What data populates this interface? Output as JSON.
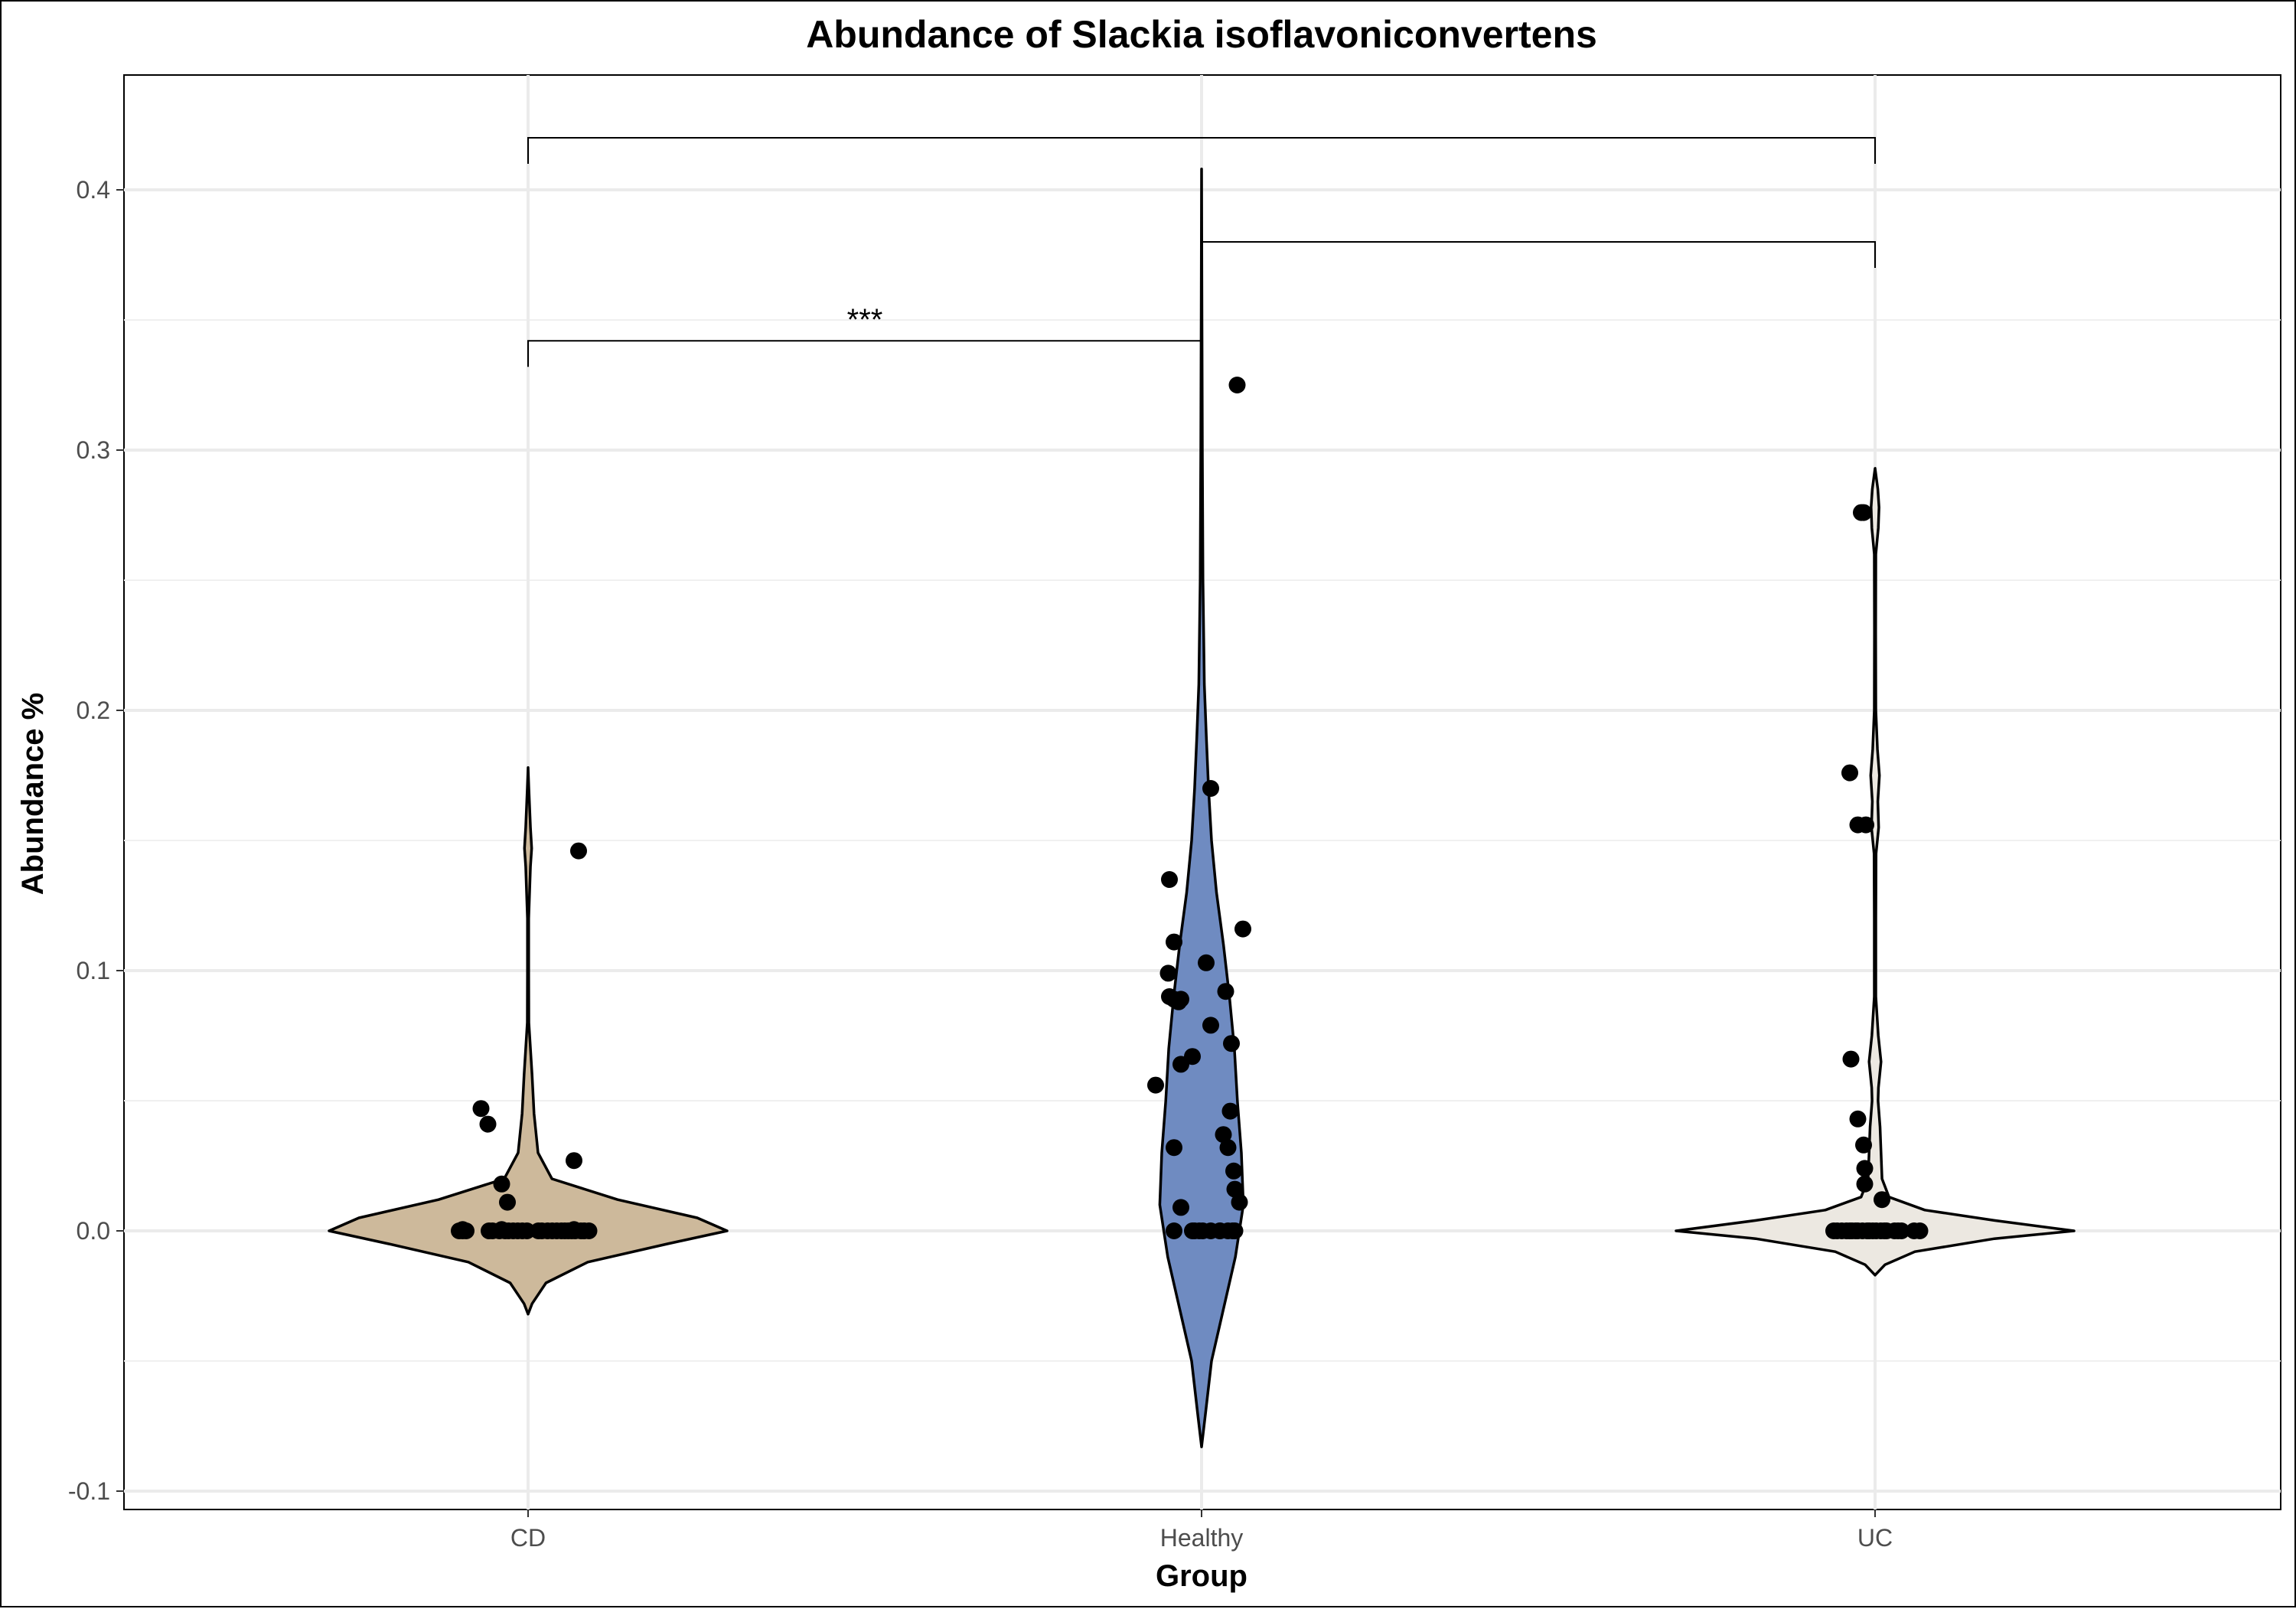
{
  "chart_data": {
    "type": "violin",
    "title": "Abundance of Slackia isoflavoniconvertens",
    "xlabel": "Group",
    "ylabel": "Abundance %",
    "ylim": [
      -0.113,
      0.443
    ],
    "yticks": [
      -0.1,
      0.0,
      0.1,
      0.2,
      0.3,
      0.4
    ],
    "ytick_labels": [
      "-0.1",
      "0.0",
      "0.1",
      "0.2",
      "0.3",
      "0.4"
    ],
    "categories": [
      "CD",
      "Healthy",
      "UC"
    ],
    "grid": true,
    "legend": "none",
    "colors": {
      "CD": "#cdb99b",
      "Healthy": "#6f8bc1",
      "UC": "#ece8e1",
      "outline": "#000000",
      "points": "#000000"
    },
    "violins": [
      {
        "group": "CD",
        "ymin": -0.032,
        "ymax": 0.178,
        "profile": [
          [
            -0.032,
            0.0
          ],
          [
            -0.028,
            0.02
          ],
          [
            -0.02,
            0.09
          ],
          [
            -0.012,
            0.3
          ],
          [
            -0.005,
            0.7
          ],
          [
            0.0,
            1.0
          ],
          [
            0.005,
            0.85
          ],
          [
            0.012,
            0.45
          ],
          [
            0.02,
            0.12
          ],
          [
            0.03,
            0.05
          ],
          [
            0.045,
            0.03
          ],
          [
            0.06,
            0.02
          ],
          [
            0.08,
            0.004
          ],
          [
            0.1,
            0.003
          ],
          [
            0.12,
            0.003
          ],
          [
            0.14,
            0.012
          ],
          [
            0.147,
            0.018
          ],
          [
            0.155,
            0.012
          ],
          [
            0.17,
            0.004
          ],
          [
            0.178,
            0.0
          ]
        ]
      },
      {
        "group": "Healthy",
        "ymin": -0.083,
        "ymax": 0.408,
        "profile": [
          [
            -0.083,
            0.0
          ],
          [
            -0.07,
            0.02
          ],
          [
            -0.05,
            0.05
          ],
          [
            -0.03,
            0.11
          ],
          [
            -0.01,
            0.17
          ],
          [
            0.01,
            0.21
          ],
          [
            0.03,
            0.2
          ],
          [
            0.05,
            0.18
          ],
          [
            0.07,
            0.165
          ],
          [
            0.09,
            0.14
          ],
          [
            0.11,
            0.11
          ],
          [
            0.13,
            0.075
          ],
          [
            0.15,
            0.05
          ],
          [
            0.17,
            0.035
          ],
          [
            0.19,
            0.024
          ],
          [
            0.21,
            0.014
          ],
          [
            0.25,
            0.007
          ],
          [
            0.3,
            0.004
          ],
          [
            0.35,
            0.002
          ],
          [
            0.408,
            0.0
          ]
        ]
      },
      {
        "group": "UC",
        "ymin": -0.017,
        "ymax": 0.293,
        "profile": [
          [
            -0.017,
            0.0
          ],
          [
            -0.013,
            0.05
          ],
          [
            -0.008,
            0.2
          ],
          [
            -0.003,
            0.6
          ],
          [
            0.0,
            1.0
          ],
          [
            0.004,
            0.6
          ],
          [
            0.008,
            0.25
          ],
          [
            0.013,
            0.07
          ],
          [
            0.02,
            0.035
          ],
          [
            0.03,
            0.03
          ],
          [
            0.04,
            0.025
          ],
          [
            0.05,
            0.015
          ],
          [
            0.055,
            0.017
          ],
          [
            0.065,
            0.03
          ],
          [
            0.075,
            0.016
          ],
          [
            0.09,
            0.004
          ],
          [
            0.12,
            0.004
          ],
          [
            0.145,
            0.005
          ],
          [
            0.155,
            0.018
          ],
          [
            0.165,
            0.014
          ],
          [
            0.175,
            0.022
          ],
          [
            0.185,
            0.012
          ],
          [
            0.2,
            0.004
          ],
          [
            0.23,
            0.003
          ],
          [
            0.26,
            0.004
          ],
          [
            0.27,
            0.016
          ],
          [
            0.278,
            0.02
          ],
          [
            0.285,
            0.014
          ],
          [
            0.293,
            0.0
          ]
        ]
      }
    ],
    "points": [
      {
        "group": "CD",
        "offsets": [
          -0.3,
          -0.285,
          -0.27,
          -0.285,
          -0.17,
          -0.155,
          -0.125,
          -0.1,
          -0.085,
          -0.065,
          -0.045,
          -0.025,
          -0.005,
          0.045,
          0.06,
          0.085,
          0.105,
          0.125,
          0.145,
          0.16,
          0.175,
          0.19,
          0.205,
          0.23,
          0.245,
          0.265,
          -0.205,
          -0.175,
          -0.115,
          -0.09,
          -0.115,
          0.2,
          0.2,
          0.22
        ],
        "y": [
          0.0,
          0.0,
          0.0,
          0.0005,
          0.0,
          0.0,
          0.0,
          0.0,
          0.0,
          0.0,
          0.0,
          0.0,
          0.0,
          0.0,
          0.0,
          0.0,
          0.0,
          0.0,
          0.0,
          0.0,
          0.0,
          0.0,
          0.0,
          0.0,
          0.0,
          0.0,
          0.047,
          0.041,
          0.018,
          0.011,
          0.0005,
          0.027,
          0.0005,
          0.146
        ]
      },
      {
        "group": "Healthy",
        "offsets": [
          -0.2,
          -0.14,
          -0.145,
          -0.12,
          -0.09,
          -0.12,
          -0.1,
          -0.14,
          -0.09,
          -0.04,
          -0.12,
          -0.09,
          -0.12,
          -0.04,
          -0.03,
          -0.01,
          0.005,
          0.04,
          0.08,
          0.04,
          0.02,
          0.04,
          0.105,
          0.13,
          0.095,
          0.115,
          0.125,
          0.145,
          0.14,
          0.165,
          0.155,
          0.18,
          0.08,
          0.115,
          0.135,
          0.145
        ],
        "y": [
          0.056,
          0.135,
          0.099,
          0.111,
          0.089,
          0.089,
          0.088,
          0.09,
          0.064,
          0.067,
          0.032,
          0.009,
          0.0,
          0.0,
          0.0,
          0.0,
          0.0,
          0.0,
          0.0,
          0.17,
          0.103,
          0.079,
          0.092,
          0.072,
          0.037,
          0.032,
          0.046,
          0.016,
          0.023,
          0.011,
          0.325,
          0.116,
          0.0,
          0.0,
          0.0,
          0.0
        ],
        "note_y_order": "matched to offsets"
      },
      {
        "group": "UC",
        "offsets": [
          -0.18,
          -0.165,
          -0.145,
          -0.125,
          -0.11,
          -0.1,
          -0.085,
          -0.075,
          -0.055,
          -0.035,
          -0.025,
          -0.01,
          0.005,
          0.025,
          0.04,
          0.05,
          0.085,
          0.1,
          0.115,
          0.17,
          0.195,
          -0.11,
          -0.105,
          -0.075,
          -0.075,
          -0.05,
          -0.045,
          -0.045,
          -0.04,
          -0.05,
          0.03,
          -0.06
        ],
        "y": [
          0.0,
          0.0,
          0.0,
          0.0,
          0.0,
          0.0,
          0.0,
          0.0,
          0.0,
          0.0,
          0.0,
          0.0,
          0.0,
          0.0,
          0.0,
          0.0,
          0.0,
          0.0,
          0.0,
          0.0,
          0.0,
          0.176,
          0.066,
          0.156,
          0.043,
          0.033,
          0.024,
          0.018,
          0.156,
          0.276,
          0.012,
          0.276
        ]
      }
    ],
    "comparisons": [
      {
        "from": "CD",
        "to": "UC",
        "y": 0.42,
        "tick_drop": 0.01,
        "label": ""
      },
      {
        "from": "Healthy",
        "to": "UC",
        "y": 0.38,
        "tick_drop": 0.01,
        "label": ""
      },
      {
        "from": "CD",
        "to": "Healthy",
        "y": 0.342,
        "tick_drop": 0.01,
        "label": "***"
      }
    ]
  }
}
